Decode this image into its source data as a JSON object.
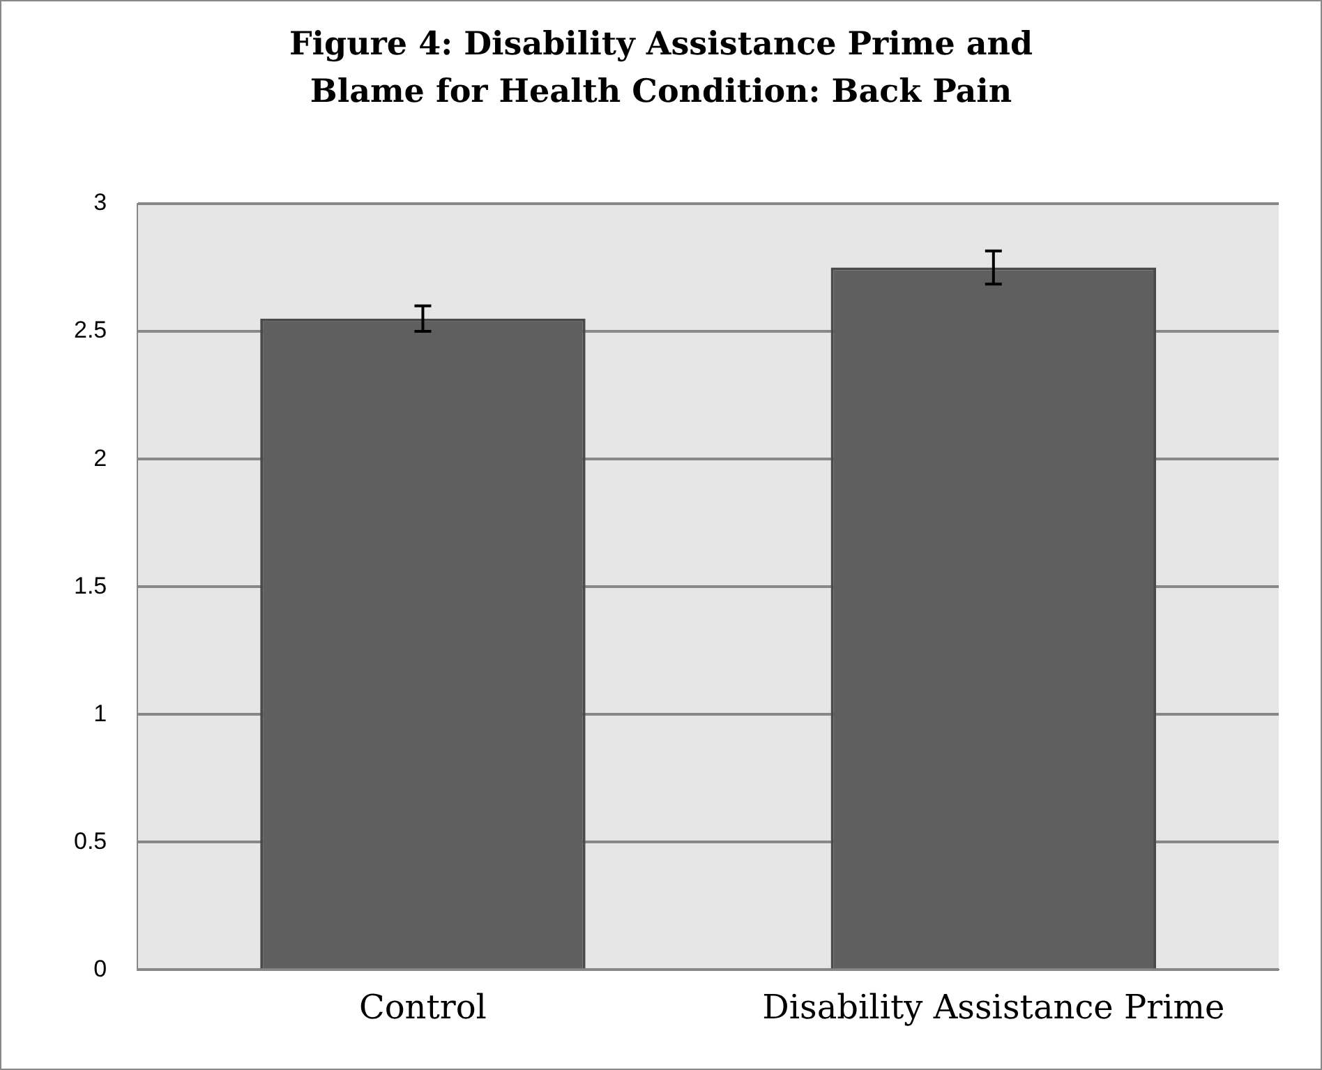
{
  "chart_data": {
    "type": "bar",
    "title": "Figure 4: Disability  Assistance Prime and Blame for Health Condition: Back Pain",
    "categories": [
      "Control",
      "Disability Assistance Prime"
    ],
    "values": [
      2.55,
      2.75
    ],
    "errors": [
      0.05,
      0.065
    ],
    "color": "#5f5f5f",
    "ylim": [
      0,
      3
    ],
    "yticks": [
      0,
      0.5,
      1,
      1.5,
      2,
      2.5,
      3
    ],
    "grid": "y",
    "legend": false
  }
}
